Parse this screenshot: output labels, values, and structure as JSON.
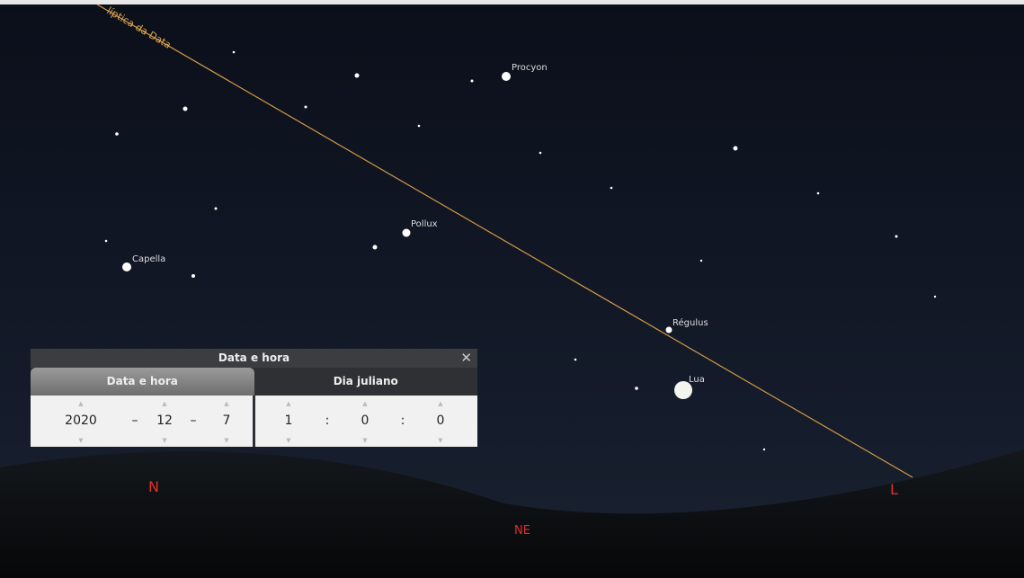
{
  "ecliptic_label": "líptica da Data",
  "stars": [
    "Procyon",
    "Pollux",
    "Capella",
    "Régulus",
    "Lua"
  ],
  "compass": [
    "N",
    "NE",
    "L"
  ],
  "dialog": {
    "title": "Data e hora",
    "tabs": [
      "Data e hora",
      "Dia juliano"
    ],
    "date_fields": [
      "2020",
      "–",
      "12",
      "–",
      "7"
    ],
    "time_fields": [
      "1",
      ":",
      "0",
      ":",
      "0"
    ]
  }
}
